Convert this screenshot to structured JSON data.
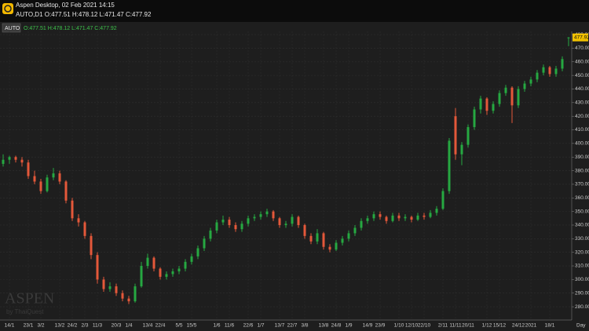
{
  "window": {
    "title": "Aspen Desktop, 02 Feb 2021 14:15",
    "info": "AUTO,D1 O:477.51 H:478.12 L:471.47 C:477.92"
  },
  "chart_data": {
    "type": "candlestick",
    "symbol": "AUTO",
    "ohlc_label": "O:477.51 H:478.12 L:471.47 C:477.92",
    "last_price_label": "477.92",
    "period_label": "Day",
    "watermark": "ASPEN",
    "watermark_sub": "by ThaiQuest",
    "up_color": "#26a841",
    "down_color": "#e4583a",
    "grid": true,
    "ylim": [
      271.4,
      481.2
    ],
    "yticks": [
      {
        "value": 280,
        "label": "280.00"
      },
      {
        "value": 290,
        "label": "290.00"
      },
      {
        "value": 300,
        "label": "300.00"
      },
      {
        "value": 310,
        "label": "310.00"
      },
      {
        "value": 320,
        "label": "320.00"
      },
      {
        "value": 330,
        "label": "330.00"
      },
      {
        "value": 340,
        "label": "340.00"
      },
      {
        "value": 350,
        "label": "350.00"
      },
      {
        "value": 360,
        "label": "360.00"
      },
      {
        "value": 370,
        "label": "370.00"
      },
      {
        "value": 380,
        "label": "380.00"
      },
      {
        "value": 390,
        "label": "390.00"
      },
      {
        "value": 400,
        "label": "400.00"
      },
      {
        "value": 410,
        "label": "410.00"
      },
      {
        "value": 420,
        "label": "420.00"
      },
      {
        "value": 430,
        "label": "430.00"
      },
      {
        "value": 440,
        "label": "440.00"
      },
      {
        "value": 450,
        "label": "450.00"
      },
      {
        "value": 460,
        "label": "460.00"
      },
      {
        "value": 470,
        "label": "470.00"
      },
      {
        "value": 480,
        "label": "480.00"
      }
    ],
    "categories": [
      null,
      "14/1",
      null,
      null,
      "23/1",
      null,
      "3/2",
      null,
      null,
      "13/2",
      null,
      "24/2",
      null,
      "2/3",
      null,
      "11/3",
      null,
      null,
      "20/3",
      null,
      "1/4",
      null,
      null,
      "13/4",
      null,
      "22/4",
      null,
      null,
      "5/5",
      null,
      "15/5",
      null,
      null,
      null,
      "1/6",
      null,
      "11/6",
      null,
      null,
      "22/6",
      null,
      "1/7",
      null,
      null,
      "13/7",
      null,
      "22/7",
      null,
      "3/8",
      null,
      null,
      "13/8",
      null,
      "24/8",
      null,
      "1/9",
      null,
      null,
      "14/9",
      null,
      "23/9",
      null,
      null,
      "1/10",
      null,
      "12/10",
      null,
      "22/10",
      null,
      null,
      "2/11",
      null,
      "11/11",
      null,
      "20/11",
      null,
      null,
      "1/12",
      null,
      "15/12",
      null,
      null,
      "24/12",
      null,
      "2021",
      null,
      null,
      "18/1",
      null,
      null,
      null
    ],
    "ohlc": [
      [
        385,
        392,
        383,
        388
      ],
      [
        388,
        391,
        385,
        390
      ],
      [
        390,
        391,
        386,
        388
      ],
      [
        388,
        390,
        383,
        386
      ],
      [
        386,
        388,
        374,
        376
      ],
      [
        376,
        380,
        370,
        372
      ],
      [
        372,
        374,
        363,
        365
      ],
      [
        365,
        377,
        364,
        375
      ],
      [
        375,
        382,
        373,
        378
      ],
      [
        378,
        380,
        370,
        372
      ],
      [
        372,
        373,
        356,
        358
      ],
      [
        358,
        360,
        343,
        345
      ],
      [
        345,
        348,
        339,
        342
      ],
      [
        342,
        343,
        330,
        332
      ],
      [
        332,
        334,
        315,
        318
      ],
      [
        318,
        320,
        297,
        300
      ],
      [
        300,
        302,
        291,
        293
      ],
      [
        293,
        298,
        291,
        295
      ],
      [
        295,
        297,
        288,
        290
      ],
      [
        290,
        292,
        284,
        286
      ],
      [
        286,
        288,
        282,
        284
      ],
      [
        284,
        297,
        283,
        295
      ],
      [
        295,
        313,
        294,
        310
      ],
      [
        310,
        319,
        308,
        316
      ],
      [
        316,
        317,
        306,
        308
      ],
      [
        308,
        309,
        300,
        302
      ],
      [
        302,
        306,
        300,
        304
      ],
      [
        304,
        308,
        302,
        306
      ],
      [
        306,
        310,
        304,
        308
      ],
      [
        308,
        315,
        306,
        313
      ],
      [
        313,
        319,
        311,
        317
      ],
      [
        317,
        325,
        315,
        323
      ],
      [
        323,
        332,
        321,
        330
      ],
      [
        330,
        338,
        328,
        336
      ],
      [
        336,
        344,
        334,
        342
      ],
      [
        342,
        347,
        340,
        344
      ],
      [
        344,
        346,
        338,
        340
      ],
      [
        340,
        342,
        335,
        337
      ],
      [
        337,
        343,
        335,
        341
      ],
      [
        341,
        347,
        339,
        345
      ],
      [
        345,
        348,
        343,
        346
      ],
      [
        346,
        350,
        344,
        348
      ],
      [
        348,
        352,
        346,
        350
      ],
      [
        350,
        351,
        343,
        345
      ],
      [
        345,
        346,
        338,
        340
      ],
      [
        340,
        343,
        338,
        341
      ],
      [
        341,
        348,
        339,
        346
      ],
      [
        346,
        347,
        338,
        340
      ],
      [
        340,
        341,
        330,
        332
      ],
      [
        332,
        334,
        326,
        328
      ],
      [
        328,
        337,
        326,
        334
      ],
      [
        334,
        335,
        322,
        324
      ],
      [
        324,
        326,
        320,
        322
      ],
      [
        322,
        329,
        321,
        327
      ],
      [
        327,
        332,
        325,
        330
      ],
      [
        330,
        336,
        328,
        334
      ],
      [
        334,
        340,
        332,
        338
      ],
      [
        338,
        345,
        336,
        343
      ],
      [
        343,
        347,
        341,
        345
      ],
      [
        345,
        350,
        343,
        348
      ],
      [
        348,
        350,
        344,
        346
      ],
      [
        346,
        347,
        341,
        343
      ],
      [
        343,
        349,
        342,
        347
      ],
      [
        347,
        349,
        343,
        345
      ],
      [
        345,
        348,
        343,
        346
      ],
      [
        346,
        347,
        342,
        344
      ],
      [
        344,
        349,
        343,
        347
      ],
      [
        347,
        349,
        344,
        346
      ],
      [
        346,
        351,
        345,
        349
      ],
      [
        349,
        354,
        347,
        352
      ],
      [
        352,
        367,
        351,
        365
      ],
      [
        365,
        404,
        363,
        402
      ],
      [
        420,
        426,
        388,
        392
      ],
      [
        392,
        401,
        384,
        399
      ],
      [
        399,
        414,
        397,
        412
      ],
      [
        412,
        427,
        410,
        425
      ],
      [
        425,
        435,
        422,
        433
      ],
      [
        433,
        434,
        421,
        424
      ],
      [
        424,
        431,
        422,
        429
      ],
      [
        429,
        439,
        427,
        437
      ],
      [
        437,
        443,
        435,
        441
      ],
      [
        441,
        442,
        415,
        428
      ],
      [
        428,
        442,
        426,
        440
      ],
      [
        440,
        446,
        438,
        444
      ],
      [
        444,
        449,
        442,
        447
      ],
      [
        447,
        454,
        445,
        452
      ],
      [
        452,
        458,
        450,
        456
      ],
      [
        456,
        457,
        449,
        451
      ],
      [
        451,
        457,
        449,
        455
      ],
      [
        455,
        464,
        453,
        462
      ],
      [
        477.51,
        478.12,
        471.47,
        477.92
      ]
    ]
  }
}
